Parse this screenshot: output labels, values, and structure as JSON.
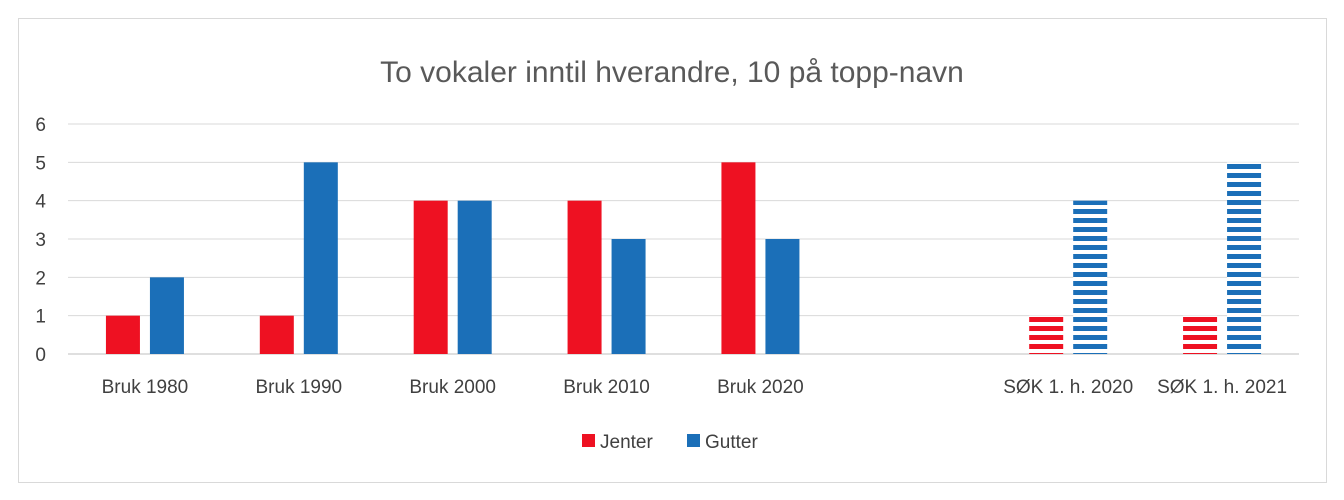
{
  "chart_data": {
    "type": "bar",
    "title": "To vokaler inntil hverandre, 10 på topp-navn",
    "categories": [
      "Bruk 1980",
      "Bruk 1990",
      "Bruk 2000",
      "Bruk 2010",
      "Bruk 2020",
      "",
      "SØK 1. h. 2020",
      "SØK 1. h. 2021"
    ],
    "series": [
      {
        "name": "Jenter",
        "color": "#ee1122",
        "values": [
          1,
          1,
          4,
          4,
          5,
          null,
          1,
          1
        ]
      },
      {
        "name": "Gutter",
        "color": "#1b6fb8",
        "values": [
          2,
          5,
          4,
          3,
          3,
          null,
          4,
          5
        ]
      }
    ],
    "striped_categories": [
      "SØK 1. h. 2020",
      "SØK 1. h. 2021"
    ],
    "ylim": [
      0,
      6
    ],
    "yticks": [
      0,
      1,
      2,
      3,
      4,
      5,
      6
    ],
    "grid": true,
    "legend": "bottom-center"
  }
}
